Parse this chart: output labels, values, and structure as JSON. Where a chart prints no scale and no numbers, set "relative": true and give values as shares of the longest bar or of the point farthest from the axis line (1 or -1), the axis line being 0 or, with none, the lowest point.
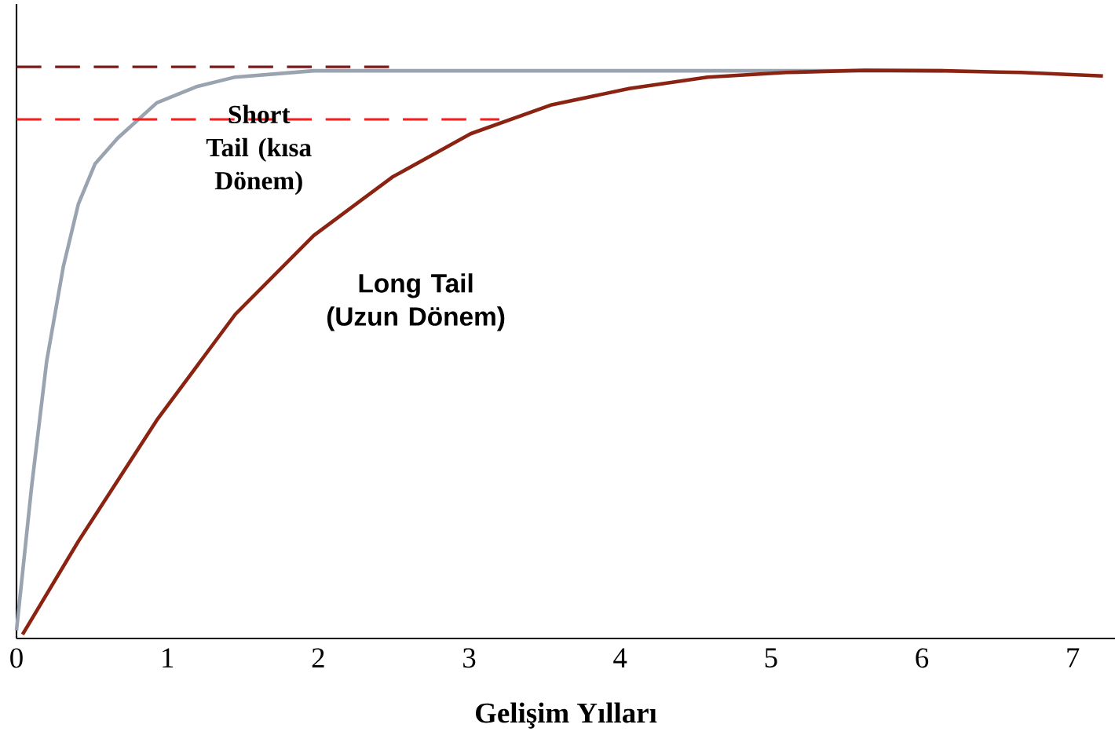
{
  "chart_data": {
    "type": "line",
    "relative": true,
    "xlabel": "Gelişim Yılları",
    "xlim": [
      0,
      7.28
    ],
    "xticks": [
      0,
      1,
      2,
      3,
      4,
      5,
      6,
      7
    ],
    "marker": "none",
    "series": [
      {
        "name": "Short Tail (kısa Dönem)",
        "color": "#9aa3b0",
        "line_style": "solid",
        "x": [
          0,
          0.1,
          0.2,
          0.31,
          0.41,
          0.52,
          0.67,
          0.93,
          1.19,
          1.45,
          1.97,
          3,
          4,
          5,
          6.14
        ],
        "values": [
          0.014,
          0.265,
          0.485,
          0.65,
          0.76,
          0.83,
          0.875,
          0.937,
          0.965,
          0.982,
          0.993,
          0.993,
          0.993,
          0.993,
          0.993
        ]
      },
      {
        "name": "Long Tail (Uzun Dönem)",
        "color": "#8b2312",
        "line_style": "solid",
        "x": [
          0.04,
          0.41,
          0.93,
          1.45,
          1.97,
          2.49,
          3.01,
          3.54,
          4.06,
          4.58,
          5.1,
          5.62,
          6.14,
          6.66,
          7.2
        ],
        "values": [
          0.007,
          0.17,
          0.382,
          0.567,
          0.705,
          0.807,
          0.883,
          0.933,
          0.962,
          0.982,
          0.99,
          0.994,
          0.993,
          0.99,
          0.984
        ]
      },
      {
        "color": "#7b1a1a",
        "line_style": "dashed",
        "x": [
          0,
          2.5
        ],
        "values": [
          1,
          1
        ]
      },
      {
        "color": "#ff1a1a",
        "line_style": "dashed",
        "x": [
          0,
          3.2
        ],
        "values": [
          0.908,
          0.908
        ]
      }
    ]
  }
}
